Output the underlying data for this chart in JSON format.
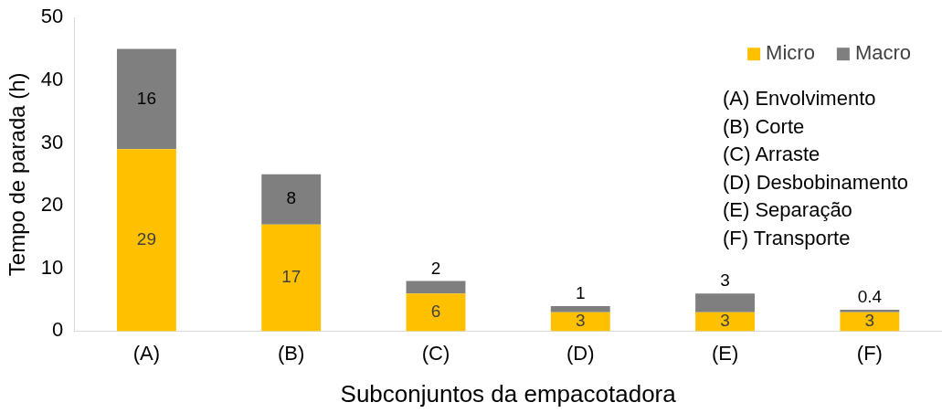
{
  "chart_data": {
    "type": "bar",
    "stacked": true,
    "xlabel": "Subconjuntos da empacotadora",
    "ylabel": "Tempo de parada (h)",
    "categories": [
      "(A)",
      "(B)",
      "(C)",
      "(D)",
      "(E)",
      "(F)"
    ],
    "series": [
      {
        "name": "Micro",
        "color": "#ffc000",
        "values": [
          29,
          17,
          6,
          3,
          3,
          3
        ]
      },
      {
        "name": "Macro",
        "color": "#7f7f7f",
        "values": [
          16,
          8,
          2,
          1,
          3,
          0.4
        ]
      }
    ],
    "ylim": [
      0,
      50
    ],
    "yticks": [
      0,
      10,
      20,
      30,
      40,
      50
    ],
    "grid": false,
    "legend": "top right",
    "data_labels": true,
    "annotations": [
      "(A) Envolvimento",
      "(B) Corte",
      "(C) Arraste",
      "(D) Desbobinamento",
      "(E) Separação",
      "(F) Transporte"
    ]
  }
}
